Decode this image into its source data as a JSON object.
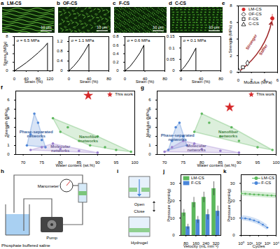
{
  "panel_letters": [
    "a",
    "b",
    "c",
    "d",
    "e",
    "f",
    "g",
    "h",
    "i",
    "j",
    "k"
  ],
  "micrographs": [
    {
      "label": "LM-CS",
      "scale_bar": "10 μm"
    },
    {
      "label": "OF-CS",
      "scale_bar": "10 μm"
    },
    {
      "label": "F-CS",
      "scale_bar": "10 μm"
    },
    {
      "label": "C-CS",
      "scale_bar": "10 μm"
    }
  ],
  "chart_data": [
    {
      "type": "line",
      "annotation": "σ = 6.5 MPa",
      "x_label": "Strain (%)",
      "y_label": "Stress (MPa)",
      "x": [
        0,
        20,
        40,
        60,
        80,
        100,
        112,
        112
      ],
      "values": [
        0,
        0.9,
        1.9,
        3.0,
        4.2,
        5.5,
        6.5,
        0
      ],
      "color": "#000000",
      "xlim": [
        0,
        130
      ],
      "xticks": [
        0,
        40,
        80,
        120
      ],
      "ylim": [
        0,
        8
      ],
      "yticks": [
        0,
        2,
        4,
        6,
        8
      ]
    },
    {
      "type": "line",
      "annotation": "σ = 1.1 MPa",
      "x_label": "Strain (%)",
      "x": [
        0,
        10,
        20,
        30,
        40,
        40
      ],
      "values": [
        0,
        0.2,
        0.45,
        0.75,
        1.1,
        0
      ],
      "color": "#000000",
      "xlim": [
        0,
        80
      ],
      "xticks": [
        0,
        40,
        80
      ],
      "ylim": [
        0,
        1.4
      ],
      "yticks": [
        0,
        0.4,
        0.8,
        1.2
      ]
    },
    {
      "type": "line",
      "annotation": "σ = 0.6 MPa",
      "x_label": "Strain (%)",
      "x": [
        0,
        10,
        20,
        30,
        38,
        38
      ],
      "values": [
        0,
        0.1,
        0.25,
        0.42,
        0.6,
        0
      ],
      "color": "#000000",
      "xlim": [
        0,
        80
      ],
      "xticks": [
        0,
        40,
        80
      ],
      "ylim": [
        0,
        0.8
      ],
      "yticks": [
        0,
        0.2,
        0.4,
        0.6,
        0.8
      ]
    },
    {
      "type": "line",
      "annotation": "σ = 0.1 MPa",
      "x_label": "Strain (%)",
      "x": [
        0,
        8,
        16,
        24,
        30,
        30
      ],
      "values": [
        0,
        0.02,
        0.045,
        0.075,
        0.1,
        0
      ],
      "color": "#000000",
      "xlim": [
        0,
        80
      ],
      "xticks": [
        0,
        40,
        80
      ],
      "ylim": [
        0,
        0.15
      ],
      "yticks": [
        0,
        0.05,
        0.1,
        0.15
      ]
    },
    {
      "type": "scatter",
      "x_label": "Modulus (MPa)",
      "y_label": "Strength (MPa)",
      "annotations": [
        "Stronger",
        "Stiffer"
      ],
      "legend": "top-left",
      "xlim": [
        0,
        6
      ],
      "xticks": [
        0,
        2,
        4,
        6
      ],
      "ylim": [
        0,
        8
      ],
      "yticks": [
        0,
        2,
        4,
        6,
        8
      ],
      "series": [
        {
          "name": "LM-CS",
          "color": "#d62728",
          "marker": "circle",
          "x": [
            5.2
          ],
          "values": [
            6.5
          ],
          "x_error": [
            0.3
          ],
          "y_error": [
            0.5
          ]
        },
        {
          "name": "OF-CS",
          "color": "#000000",
          "marker": "diamond-open",
          "x": [
            1.4
          ],
          "values": [
            1.1
          ],
          "x_error": [
            0.1
          ],
          "y_error": [
            0.1
          ]
        },
        {
          "name": "F-CS",
          "color": "#000000",
          "marker": "square-open",
          "x": [
            0.7
          ],
          "values": [
            0.6
          ],
          "x_error": [
            0.1
          ],
          "y_error": [
            0.1
          ]
        },
        {
          "name": "C-CS",
          "color": "#000000",
          "marker": "triangle-open",
          "x": [
            0.1
          ],
          "values": [
            0.1
          ],
          "x_error": [
            0.05
          ],
          "y_error": [
            0.05
          ]
        }
      ]
    },
    {
      "type": "scatter",
      "x_label": "Water content (wt.%)",
      "y_label": "Strength (MPa)",
      "legend": "top-right",
      "xlim": [
        68,
        100
      ],
      "xticks": [
        70,
        75,
        80,
        85,
        90,
        95,
        100
      ],
      "ylim": [
        0,
        7
      ],
      "yticks": [
        0,
        1,
        2,
        3,
        4,
        5,
        6
      ],
      "series": [
        {
          "name": "Phase-separated networks",
          "type": "region",
          "color": "#4f86d6",
          "x": [
            71,
            72,
            73,
            74,
            75,
            76
          ],
          "values": [
            1,
            2.2,
            4.5,
            3.5,
            1.6,
            0.8
          ]
        },
        {
          "name": "Nanofiber networks",
          "type": "region",
          "color": "#5fb85f",
          "x": [
            78,
            80,
            82,
            85,
            88,
            90,
            92,
            95,
            99
          ],
          "values": [
            4,
            2.5,
            3,
            1.5,
            1,
            2,
            0.8,
            0.5,
            0.3
          ]
        },
        {
          "name": "Molecular networks",
          "type": "region",
          "color": "#9a7fcf",
          "x": [
            72,
            75,
            78,
            80,
            85,
            90
          ],
          "values": [
            0.5,
            0.8,
            1.2,
            0.6,
            0.4,
            0.2
          ]
        },
        {
          "name": "This work",
          "type": "scatter",
          "color": "#d62728",
          "marker": "star",
          "x": [
            87.5
          ],
          "values": [
            6.5
          ]
        }
      ]
    },
    {
      "type": "scatter",
      "x_label": "Water content (wt.%)",
      "y_label": "Modulus (MPa)",
      "legend": "top-right",
      "xlim": [
        68,
        100
      ],
      "xticks": [
        70,
        75,
        80,
        85,
        90,
        95,
        100
      ],
      "ylim": [
        0,
        7
      ],
      "yticks": [
        0,
        1,
        2,
        3,
        4,
        5,
        6
      ],
      "series": [
        {
          "name": "Phase-separated networks",
          "type": "region",
          "color": "#4f86d6",
          "x": [
            71,
            72,
            73,
            74,
            75,
            76
          ],
          "values": [
            0.5,
            1.5,
            3,
            3.5,
            2,
            1
          ]
        },
        {
          "name": "Nanofiber networks",
          "type": "region",
          "color": "#5fb85f",
          "x": [
            78,
            80,
            82,
            85,
            88,
            90,
            95,
            99
          ],
          "values": [
            2.5,
            4.5,
            3.5,
            2,
            3,
            1.5,
            0.8,
            0.5
          ]
        },
        {
          "name": "Molecular networks",
          "type": "region",
          "color": "#9a7fcf",
          "x": [
            70,
            72,
            75,
            78,
            80,
            85,
            90
          ],
          "values": [
            0.3,
            0.8,
            1.5,
            1.2,
            0.6,
            0.4,
            0.2
          ]
        },
        {
          "name": "This work",
          "type": "scatter",
          "color": "#d62728",
          "marker": "star",
          "x": [
            87.5
          ],
          "values": [
            5.2
          ]
        }
      ]
    },
    {
      "type": "bar",
      "x_label": "Velocity (mL min⁻¹)",
      "y_label": "Pressure (mmHg)",
      "legend": "top-left",
      "categories": [
        80,
        160,
        240,
        320
      ],
      "ylim": [
        0,
        35
      ],
      "yticks": [
        0,
        10,
        20,
        30
      ],
      "series": [
        {
          "name": "LM-CS",
          "color": "#5cb85c",
          "values": [
            13,
            19,
            22,
            27
          ],
          "error": [
            2,
            3,
            3,
            4
          ]
        },
        {
          "name": "F-CS",
          "color": "#4a86d9",
          "values": [
            5,
            9,
            12,
            14
          ],
          "error": [
            1.5,
            2,
            3,
            3
          ]
        }
      ]
    },
    {
      "type": "line",
      "x_label": "Cycles",
      "y_label": "Pressure (mmHg)",
      "log": "x",
      "legend": "top-right",
      "x": [
        1,
        3,
        10,
        30,
        100,
        300,
        1000,
        3000,
        10000
      ],
      "xlim": [
        1,
        10000
      ],
      "xticks": [
        {
          "value": 1,
          "label": "10⁰"
        },
        {
          "value": 10,
          "label": "10¹"
        },
        {
          "value": 100,
          "label": "10²"
        },
        {
          "value": 1000,
          "label": "10³"
        },
        {
          "value": 10000,
          "label": "10⁴"
        }
      ],
      "ylim": [
        0,
        35
      ],
      "yticks": [
        0,
        10,
        20,
        30
      ],
      "series": [
        {
          "name": "LM-CS",
          "color": "#5cb85c",
          "marker": "circle",
          "values": [
            24.2,
            24,
            23.8,
            23.6,
            23.5,
            23.3,
            23.1,
            23,
            22.8
          ],
          "error": [
            1.5,
            1.5,
            1.5,
            1.5,
            1.5,
            1.5,
            1.5,
            1.5,
            1.5
          ]
        },
        {
          "name": "F-CS",
          "color": "#4a86d9",
          "marker": "circle",
          "values": [
            10,
            9.8,
            9.3,
            8.6,
            7.6,
            6.2,
            4.5,
            null,
            null
          ],
          "error": [
            1.5,
            1.5,
            1.5,
            1.5,
            1.5,
            1.5,
            1.5,
            null,
            null
          ]
        }
      ]
    }
  ],
  "schematic_h": {
    "labels": [
      "Manometer",
      "Pump",
      "Phosphate buffered saline"
    ]
  },
  "schematic_i": {
    "labels": [
      "Open",
      "Close",
      "Hydrogel"
    ]
  }
}
